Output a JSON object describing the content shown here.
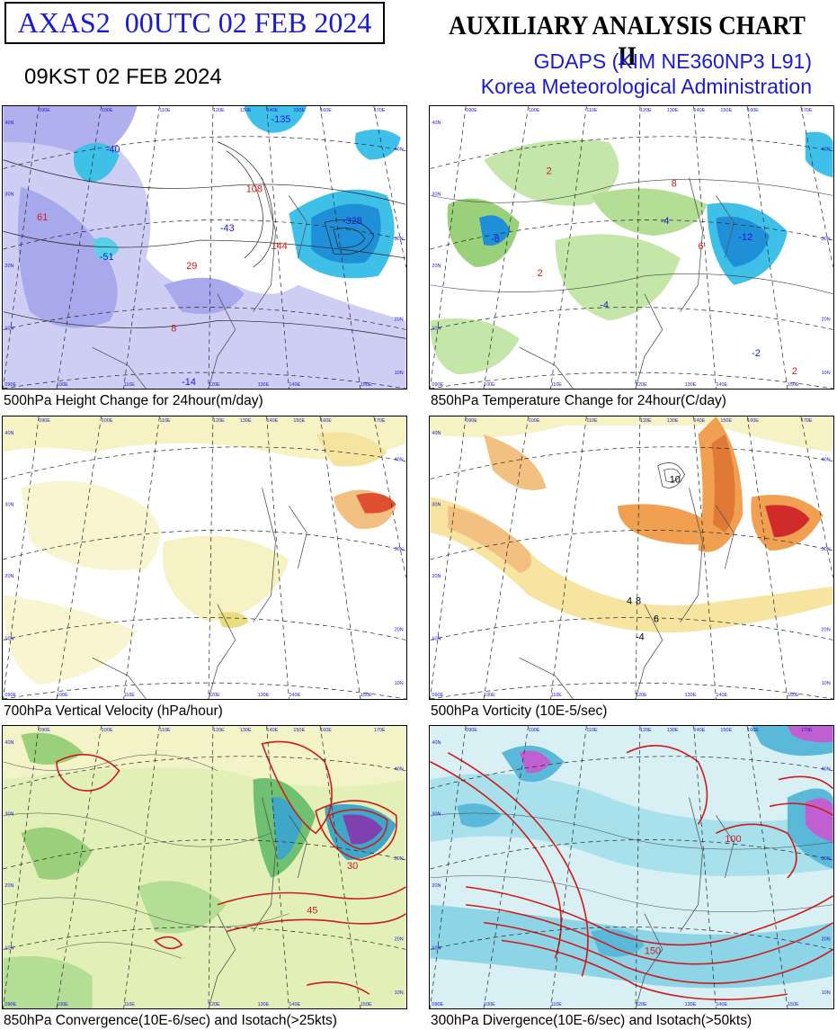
{
  "header": {
    "product_id": "AXAS2  00UTC 02 FEB 2024",
    "local_time": "09KST 02 FEB 2024",
    "title": "AUXILIARY ANALYSIS CHART II",
    "model": "GDAPS (KIM NE360NP3 L91)",
    "agency": "Korea Meteorological Administration"
  },
  "panels": [
    {
      "caption": "500hPa Height Change for 24hour(m/day)",
      "labels": [
        {
          "text": "-51",
          "c": "#1a1ad0"
        },
        {
          "text": "-43",
          "c": "#1a1ad0"
        },
        {
          "text": "-40",
          "c": "#1a1ad0"
        },
        {
          "text": "-328",
          "c": "#1a1ad0"
        },
        {
          "text": "-135",
          "c": "#1a1ad0"
        },
        {
          "text": "108",
          "c": "#d01a1a"
        },
        {
          "text": "144",
          "c": "#d01a1a"
        },
        {
          "text": "29",
          "c": "#d01a1a"
        },
        {
          "text": "61",
          "c": "#d01a1a"
        },
        {
          "text": "8",
          "c": "#d01a1a"
        },
        {
          "text": "-14",
          "c": "#1a1ad0"
        }
      ]
    },
    {
      "caption": "850hPa Temperature Change for 24hour(C/day)",
      "labels": [
        {
          "text": "-8",
          "c": "#1a1ad0"
        },
        {
          "text": "-12",
          "c": "#1a1ad0"
        },
        {
          "text": "-4",
          "c": "#1a1ad0"
        },
        {
          "text": "2",
          "c": "#d01a1a"
        },
        {
          "text": "8",
          "c": "#d01a1a"
        },
        {
          "text": "6",
          "c": "#d01a1a"
        },
        {
          "text": "2",
          "c": "#d01a1a"
        },
        {
          "text": "-2",
          "c": "#1a1ad0"
        },
        {
          "text": "-4",
          "c": "#1a1ad0"
        },
        {
          "text": "2",
          "c": "#d01a1a"
        }
      ]
    },
    {
      "caption": "700hPa Vertical Velocity (hPa/hour)",
      "labels": []
    },
    {
      "caption": "500hPa Vorticity (10E-5/sec)",
      "labels": [
        {
          "text": "10",
          "c": "#000"
        },
        {
          "text": "4",
          "c": "#000"
        },
        {
          "text": "8",
          "c": "#000"
        },
        {
          "text": "6",
          "c": "#000"
        },
        {
          "text": "-4",
          "c": "#000"
        }
      ]
    },
    {
      "caption": "850hPa Convergence(10E-6/sec) and Isotach(>25kts)",
      "labels": [
        {
          "text": "30",
          "c": "#d01a1a"
        },
        {
          "text": "45",
          "c": "#d01a1a"
        }
      ]
    },
    {
      "caption": "300hPa Divergence(10E-6/sec) and Isotach(>50kts)",
      "labels": [
        {
          "text": "100",
          "c": "#d01a1a"
        },
        {
          "text": "150",
          "c": "#d01a1a"
        }
      ]
    }
  ],
  "map_axes": {
    "lon_labels_top": [
      "090E",
      "100E",
      "110E",
      "120E",
      "130E",
      "140E",
      "150E",
      "160E",
      "170E"
    ],
    "lon_labels_bottom": [
      "090E",
      "100E",
      "110E",
      "120E",
      "130E",
      "140E",
      "150E"
    ],
    "lat_labels_right": [
      "40N",
      "30N",
      "20N",
      "10N"
    ],
    "lat_labels_left": [
      "40N",
      "30N",
      "20N",
      "10N"
    ]
  },
  "colors": {
    "title_blue": "#1a1ad0",
    "height_fill": "#b8b8f0",
    "cyan": "#3fc0e8",
    "green": "#9ad07a",
    "yellow": "#f4f0b0",
    "orange": "#f0a050",
    "red_isotach": "#d01a1a",
    "purple": "#b050d0"
  }
}
